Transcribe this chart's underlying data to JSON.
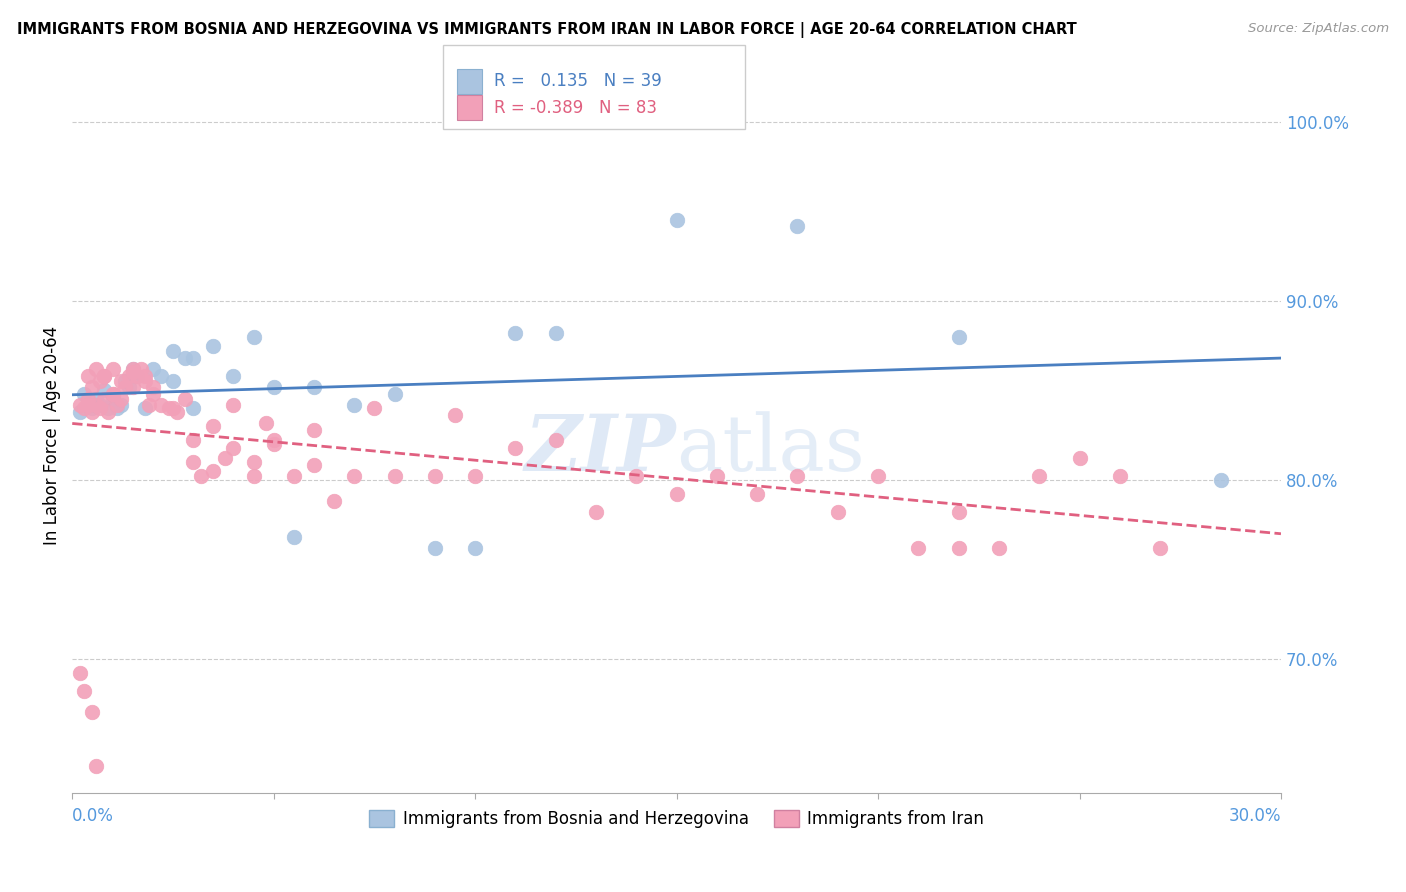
{
  "title": "IMMIGRANTS FROM BOSNIA AND HERZEGOVINA VS IMMIGRANTS FROM IRAN IN LABOR FORCE | AGE 20-64 CORRELATION CHART",
  "source": "Source: ZipAtlas.com",
  "ylabel_label": "In Labor Force | Age 20-64",
  "legend1_label": "Immigrants from Bosnia and Herzegovina",
  "legend2_label": "Immigrants from Iran",
  "r1": "0.135",
  "n1": "39",
  "r2": "-0.389",
  "n2": "83",
  "color_bosnia": "#aac4e0",
  "color_iran": "#f2a0b8",
  "color_line_bosnia": "#4a7fc1",
  "color_line_iran": "#e06080",
  "color_blue_axis": "#5599dd",
  "xlim": [
    0.0,
    0.3
  ],
  "ylim": [
    0.625,
    1.025
  ],
  "yticks": [
    0.7,
    0.8,
    0.9,
    1.0
  ],
  "ytick_labels": [
    "70.0%",
    "80.0%",
    "90.0%",
    "100.0%"
  ],
  "xtick_labels_show": [
    "0.0%",
    "30.0%"
  ],
  "bosnia_x": [
    0.002,
    0.003,
    0.004,
    0.005,
    0.006,
    0.007,
    0.008,
    0.009,
    0.01,
    0.011,
    0.012,
    0.013,
    0.014,
    0.015,
    0.016,
    0.018,
    0.02,
    0.022,
    0.025,
    0.028,
    0.03,
    0.035,
    0.04,
    0.045,
    0.05,
    0.055,
    0.06,
    0.07,
    0.08,
    0.09,
    0.1,
    0.11,
    0.12,
    0.025,
    0.03,
    0.15,
    0.18,
    0.22,
    0.285
  ],
  "bosnia_y": [
    0.838,
    0.848,
    0.842,
    0.84,
    0.845,
    0.842,
    0.85,
    0.84,
    0.845,
    0.84,
    0.842,
    0.855,
    0.852,
    0.862,
    0.858,
    0.84,
    0.862,
    0.858,
    0.872,
    0.868,
    0.868,
    0.875,
    0.858,
    0.88,
    0.852,
    0.768,
    0.852,
    0.842,
    0.848,
    0.762,
    0.762,
    0.882,
    0.882,
    0.855,
    0.84,
    0.945,
    0.942,
    0.88,
    0.8
  ],
  "iran_x": [
    0.002,
    0.003,
    0.004,
    0.004,
    0.005,
    0.005,
    0.006,
    0.006,
    0.007,
    0.007,
    0.008,
    0.008,
    0.009,
    0.01,
    0.01,
    0.011,
    0.012,
    0.013,
    0.014,
    0.015,
    0.015,
    0.016,
    0.017,
    0.018,
    0.019,
    0.02,
    0.022,
    0.024,
    0.026,
    0.028,
    0.03,
    0.032,
    0.035,
    0.038,
    0.04,
    0.045,
    0.048,
    0.05,
    0.055,
    0.06,
    0.06,
    0.065,
    0.07,
    0.075,
    0.08,
    0.09,
    0.095,
    0.1,
    0.11,
    0.12,
    0.13,
    0.14,
    0.15,
    0.16,
    0.17,
    0.18,
    0.19,
    0.2,
    0.21,
    0.22,
    0.23,
    0.24,
    0.25,
    0.26,
    0.27,
    0.002,
    0.003,
    0.004,
    0.005,
    0.006,
    0.008,
    0.01,
    0.012,
    0.015,
    0.018,
    0.02,
    0.025,
    0.03,
    0.035,
    0.04,
    0.045,
    0.05,
    0.22
  ],
  "iran_y": [
    0.842,
    0.84,
    0.845,
    0.858,
    0.838,
    0.852,
    0.842,
    0.862,
    0.84,
    0.855,
    0.845,
    0.858,
    0.838,
    0.848,
    0.862,
    0.842,
    0.845,
    0.852,
    0.858,
    0.852,
    0.862,
    0.858,
    0.862,
    0.855,
    0.842,
    0.848,
    0.842,
    0.84,
    0.838,
    0.845,
    0.822,
    0.802,
    0.83,
    0.812,
    0.842,
    0.802,
    0.832,
    0.822,
    0.802,
    0.828,
    0.808,
    0.788,
    0.802,
    0.84,
    0.802,
    0.802,
    0.836,
    0.802,
    0.818,
    0.822,
    0.782,
    0.802,
    0.792,
    0.802,
    0.792,
    0.802,
    0.782,
    0.802,
    0.762,
    0.782,
    0.762,
    0.802,
    0.812,
    0.802,
    0.762,
    0.692,
    0.682,
    0.842,
    0.67,
    0.64,
    0.858,
    0.848,
    0.855,
    0.86,
    0.858,
    0.852,
    0.84,
    0.81,
    0.805,
    0.818,
    0.81,
    0.82,
    0.762
  ]
}
